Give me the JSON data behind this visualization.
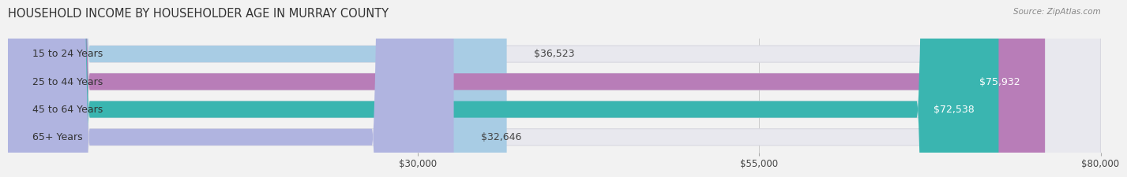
{
  "title": "HOUSEHOLD INCOME BY HOUSEHOLDER AGE IN MURRAY COUNTY",
  "source": "Source: ZipAtlas.com",
  "categories": [
    "15 to 24 Years",
    "25 to 44 Years",
    "45 to 64 Years",
    "65+ Years"
  ],
  "values": [
    36523,
    75932,
    72538,
    32646
  ],
  "bar_colors": [
    "#a8cce4",
    "#b87db8",
    "#3ab5b0",
    "#b0b4e0"
  ],
  "bg_bar_color": "#e8e8ee",
  "bg_bar_edge": "#d8d8e0",
  "label_colors": [
    "#444444",
    "#ffffff",
    "#ffffff",
    "#444444"
  ],
  "value_labels": [
    "$36,523",
    "$75,932",
    "$72,538",
    "$32,646"
  ],
  "xlim_min": 0,
  "xlim_max": 80000,
  "xticks": [
    30000,
    55000,
    80000
  ],
  "xtick_labels": [
    "$30,000",
    "$55,000",
    "$80,000"
  ],
  "background_color": "#f2f2f2",
  "title_fontsize": 10.5,
  "source_fontsize": 7.5,
  "tick_fontsize": 8.5,
  "cat_fontsize": 9,
  "value_fontsize": 9,
  "bar_height": 0.6,
  "figsize": [
    14.06,
    2.33
  ]
}
